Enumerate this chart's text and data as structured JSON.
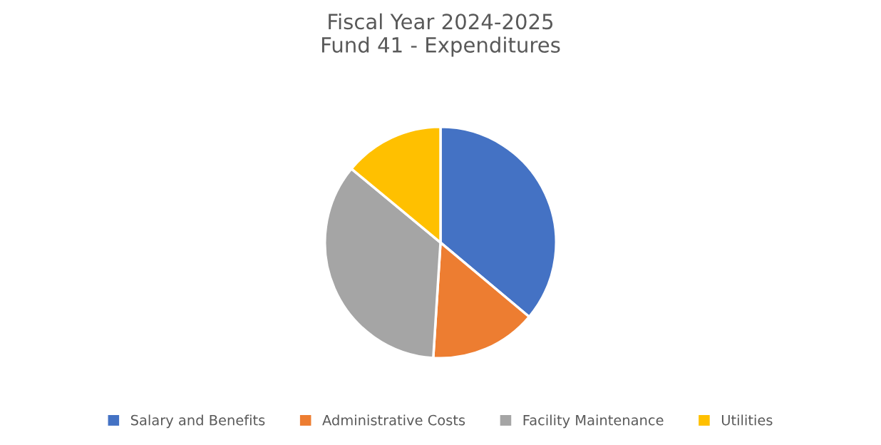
{
  "chart_data": {
    "type": "pie",
    "title": "Fiscal Year 2024-2025\nFund 41 - Expenditures",
    "categories": [
      "Salary and Benefits",
      "Administrative Costs",
      "Facility Maintenance",
      "Utilities"
    ],
    "values": [
      36.1,
      14.9,
      35.0,
      14.0
    ],
    "colors": [
      "#4472c4",
      "#ed7d31",
      "#a5a5a5",
      "#ffc000"
    ],
    "legend": "bottom"
  }
}
